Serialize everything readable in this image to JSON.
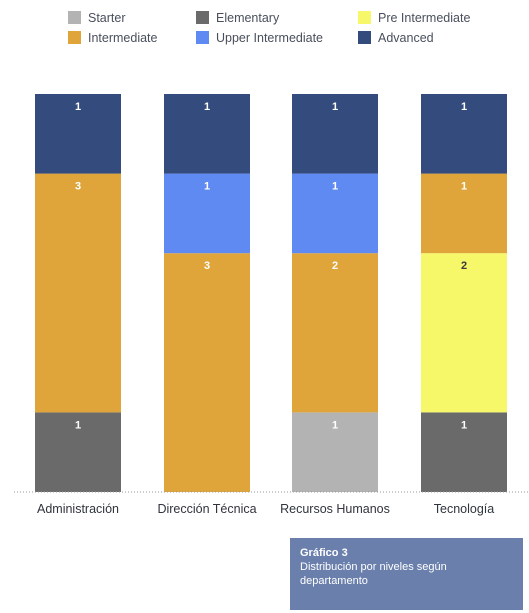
{
  "chart_data": {
    "type": "bar",
    "stacked": true,
    "categories": [
      "Administración",
      "Dirección Técnica",
      "Recursos Humanos",
      "Tecnología"
    ],
    "series": [
      {
        "name": "Starter",
        "color": "#b3b3b3",
        "values": [
          0,
          0,
          1,
          0
        ]
      },
      {
        "name": "Elementary",
        "color": "#6a6a6a",
        "values": [
          1,
          0,
          0,
          1
        ]
      },
      {
        "name": "Pre Intermediate",
        "color": "#f7f76a",
        "values": [
          0,
          0,
          0,
          2
        ]
      },
      {
        "name": "Intermediate",
        "color": "#dfa53a",
        "values": [
          3,
          3,
          2,
          1
        ]
      },
      {
        "name": "Upper Intermediate",
        "color": "#5f8af2",
        "values": [
          0,
          1,
          1,
          0
        ]
      },
      {
        "name": "Advanced",
        "color": "#344b7e",
        "values": [
          1,
          1,
          1,
          1
        ]
      }
    ],
    "ylim": [
      0,
      5
    ],
    "legend_position": "top",
    "grid": false
  },
  "caption": {
    "title": "Gráfico 3",
    "text": "Distribución por niveles según departamento"
  }
}
